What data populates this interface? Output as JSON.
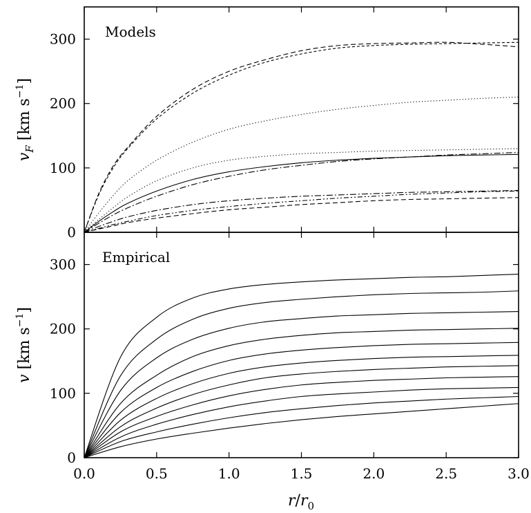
{
  "chart_data": [
    {
      "type": "line",
      "panel_title": "Models",
      "ylabel": "v_F [km s^-1]",
      "xlim": [
        0,
        3
      ],
      "ylim": [
        0,
        350
      ],
      "yticks": [
        0,
        100,
        200,
        300
      ],
      "series": [
        {
          "style": "dashed",
          "x": [
            0,
            0.1,
            0.2,
            0.3,
            0.5,
            0.75,
            1.0,
            1.25,
            1.5,
            1.75,
            2.0,
            2.25,
            2.5,
            2.75,
            3.0
          ],
          "y": [
            0,
            60,
            103,
            132,
            180,
            222,
            250,
            268,
            282,
            290,
            293,
            294,
            295,
            292,
            288
          ]
        },
        {
          "style": "densely-dashed",
          "x": [
            0,
            0.1,
            0.2,
            0.3,
            0.5,
            0.75,
            1.0,
            1.25,
            1.5,
            1.75,
            2.0,
            2.25,
            2.5,
            2.75,
            3.0
          ],
          "y": [
            0,
            58,
            100,
            130,
            176,
            216,
            244,
            264,
            277,
            286,
            290,
            292,
            293,
            294,
            295
          ]
        },
        {
          "style": "dotted",
          "x": [
            0,
            0.1,
            0.2,
            0.3,
            0.5,
            0.75,
            1.0,
            1.25,
            1.5,
            1.75,
            2.0,
            2.25,
            2.5,
            2.75,
            3.0
          ],
          "y": [
            0,
            30,
            57,
            80,
            112,
            140,
            160,
            173,
            183,
            191,
            197,
            202,
            205,
            208,
            210
          ]
        },
        {
          "style": "dotted",
          "x": [
            0,
            0.1,
            0.2,
            0.3,
            0.5,
            0.75,
            1.0,
            1.25,
            1.5,
            1.75,
            2.0,
            2.25,
            2.5,
            2.75,
            3.0
          ],
          "y": [
            0,
            20,
            38,
            55,
            80,
            100,
            112,
            118,
            122,
            124,
            126,
            127,
            128,
            129,
            130
          ]
        },
        {
          "style": "solid",
          "x": [
            0,
            0.1,
            0.2,
            0.3,
            0.5,
            0.75,
            1.0,
            1.25,
            1.5,
            1.75,
            2.0,
            2.25,
            2.5,
            2.75,
            3.0
          ],
          "y": [
            0,
            17,
            32,
            45,
            64,
            82,
            94,
            102,
            108,
            112,
            115,
            117,
            119,
            120,
            121
          ]
        },
        {
          "style": "dash-dot",
          "x": [
            0,
            0.1,
            0.2,
            0.3,
            0.5,
            0.75,
            1.0,
            1.25,
            1.5,
            1.75,
            2.0,
            2.25,
            2.5,
            2.75,
            3.0
          ],
          "y": [
            0,
            14,
            27,
            38,
            56,
            74,
            87,
            97,
            104,
            110,
            114,
            117,
            120,
            122,
            124
          ]
        },
        {
          "style": "dash-dot",
          "x": [
            0,
            0.1,
            0.2,
            0.3,
            0.5,
            0.75,
            1.0,
            1.25,
            1.5,
            1.75,
            2.0,
            2.25,
            2.5,
            2.75,
            3.0
          ],
          "y": [
            0,
            9,
            17,
            24,
            34,
            43,
            49,
            53,
            56,
            58,
            60,
            62,
            63,
            64,
            65
          ]
        },
        {
          "style": "dash-dot-dot",
          "x": [
            0,
            0.1,
            0.2,
            0.3,
            0.5,
            0.75,
            1.0,
            1.25,
            1.5,
            1.75,
            2.0,
            2.25,
            2.5,
            2.75,
            3.0
          ],
          "y": [
            0,
            6,
            12,
            17,
            26,
            34,
            40,
            45,
            49,
            53,
            56,
            59,
            61,
            63,
            64
          ]
        },
        {
          "style": "dashed",
          "x": [
            0,
            0.1,
            0.2,
            0.3,
            0.5,
            0.75,
            1.0,
            1.25,
            1.5,
            1.75,
            2.0,
            2.25,
            2.5,
            2.75,
            3.0
          ],
          "y": [
            0,
            5,
            10,
            15,
            22,
            29,
            35,
            39,
            43,
            46,
            49,
            51,
            52,
            53,
            54
          ]
        }
      ]
    },
    {
      "type": "line",
      "panel_title": "Empirical",
      "ylabel": "v [km s^-1]",
      "xlabel": "r/r_0",
      "xlim": [
        0,
        3
      ],
      "ylim": [
        0,
        350
      ],
      "xticks": [
        0.0,
        0.5,
        1.0,
        1.5,
        2.0,
        2.5,
        3.0
      ],
      "yticks": [
        0,
        100,
        200,
        300
      ],
      "series": [
        {
          "style": "solid",
          "x": [
            0,
            0.25,
            0.5,
            0.75,
            1.0,
            1.25,
            1.5,
            1.75,
            2.0,
            2.25,
            2.5,
            2.75,
            3.0
          ],
          "y": [
            0,
            156,
            218,
            248,
            262,
            269,
            273,
            276,
            278,
            280,
            281,
            283,
            285
          ]
        },
        {
          "style": "solid",
          "x": [
            0,
            0.25,
            0.5,
            0.75,
            1.0,
            1.25,
            1.5,
            1.75,
            2.0,
            2.25,
            2.5,
            2.75,
            3.0
          ],
          "y": [
            0,
            127,
            184,
            215,
            232,
            241,
            246,
            250,
            253,
            255,
            256,
            257,
            259
          ]
        },
        {
          "style": "solid",
          "x": [
            0,
            0.25,
            0.5,
            0.75,
            1.0,
            1.25,
            1.5,
            1.75,
            2.0,
            2.25,
            2.5,
            2.75,
            3.0
          ],
          "y": [
            0,
            104,
            155,
            184,
            201,
            211,
            216,
            220,
            222,
            224,
            225,
            226,
            227
          ]
        },
        {
          "style": "solid",
          "x": [
            0,
            0.25,
            0.5,
            0.75,
            1.0,
            1.25,
            1.5,
            1.75,
            2.0,
            2.25,
            2.5,
            2.75,
            3.0
          ],
          "y": [
            0,
            84,
            128,
            157,
            174,
            184,
            190,
            194,
            196,
            198,
            199,
            200,
            201
          ]
        },
        {
          "style": "solid",
          "x": [
            0,
            0.25,
            0.5,
            0.75,
            1.0,
            1.25,
            1.5,
            1.75,
            2.0,
            2.25,
            2.5,
            2.75,
            3.0
          ],
          "y": [
            0,
            70,
            109,
            134,
            151,
            161,
            167,
            171,
            174,
            176,
            177,
            178,
            179
          ]
        },
        {
          "style": "solid",
          "x": [
            0,
            0.25,
            0.5,
            0.75,
            1.0,
            1.25,
            1.5,
            1.75,
            2.0,
            2.25,
            2.5,
            2.75,
            3.0
          ],
          "y": [
            0,
            58,
            92,
            115,
            131,
            141,
            147,
            151,
            154,
            156,
            157,
            158,
            159
          ]
        },
        {
          "style": "solid",
          "x": [
            0,
            0.25,
            0.5,
            0.75,
            1.0,
            1.25,
            1.5,
            1.75,
            2.0,
            2.25,
            2.5,
            2.75,
            3.0
          ],
          "y": [
            0,
            48,
            77,
            98,
            113,
            124,
            130,
            134,
            137,
            139,
            141,
            142,
            143
          ]
        },
        {
          "style": "solid",
          "x": [
            0,
            0.25,
            0.5,
            0.75,
            1.0,
            1.25,
            1.5,
            1.75,
            2.0,
            2.25,
            2.5,
            2.75,
            3.0
          ],
          "y": [
            0,
            40,
            64,
            82,
            96,
            106,
            113,
            117,
            120,
            122,
            124,
            125,
            126
          ]
        },
        {
          "style": "solid",
          "x": [
            0,
            0.25,
            0.5,
            0.75,
            1.0,
            1.25,
            1.5,
            1.75,
            2.0,
            2.25,
            2.5,
            2.75,
            3.0
          ],
          "y": [
            0,
            32,
            52,
            67,
            79,
            88,
            95,
            99,
            102,
            105,
            107,
            108,
            109
          ]
        },
        {
          "style": "solid",
          "x": [
            0,
            0.25,
            0.5,
            0.75,
            1.0,
            1.25,
            1.5,
            1.75,
            2.0,
            2.25,
            2.5,
            2.75,
            3.0
          ],
          "y": [
            0,
            25,
            40,
            52,
            62,
            70,
            76,
            81,
            85,
            88,
            91,
            93,
            95
          ]
        },
        {
          "style": "solid",
          "x": [
            0,
            0.25,
            0.5,
            0.75,
            1.0,
            1.25,
            1.5,
            1.75,
            2.0,
            2.25,
            2.5,
            2.75,
            3.0
          ],
          "y": [
            0,
            17,
            29,
            38,
            46,
            53,
            59,
            64,
            68,
            72,
            76,
            80,
            84
          ]
        }
      ]
    }
  ]
}
